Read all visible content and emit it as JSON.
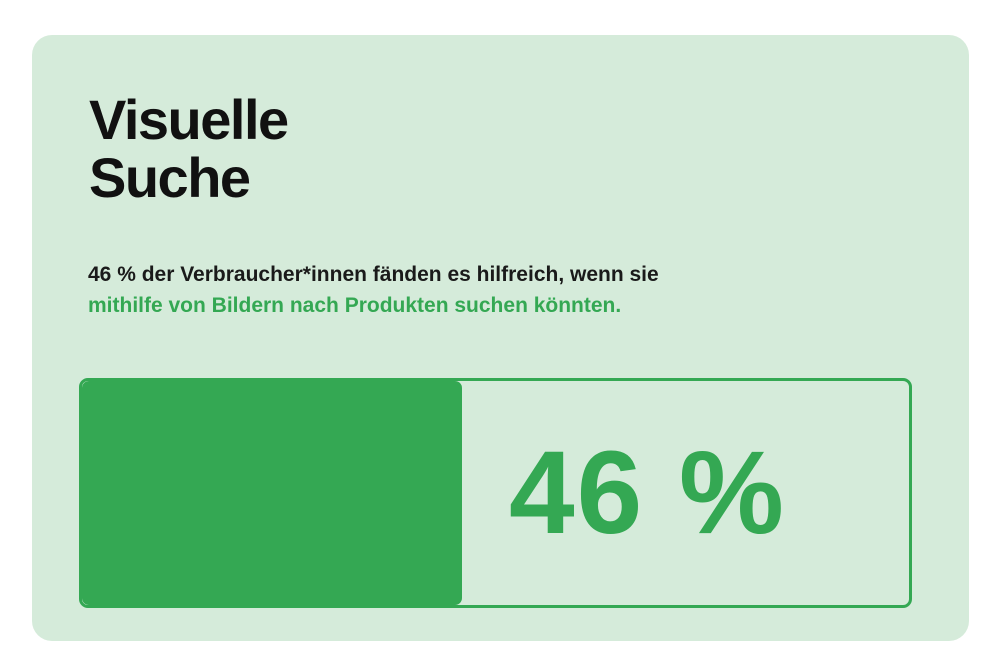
{
  "card": {
    "title_line1": "Visuelle",
    "title_line2": "Suche",
    "description_part1": "46 % der Verbraucher*innen fänden es hilfreich, wenn sie",
    "description_part2": "mithilfe von Bildern nach Produkten suchen könnten."
  },
  "progress": {
    "value_percent": 46,
    "label": "46 %"
  },
  "colors": {
    "background": "#d5ebda",
    "accent": "#34a853",
    "text": "#111111"
  }
}
